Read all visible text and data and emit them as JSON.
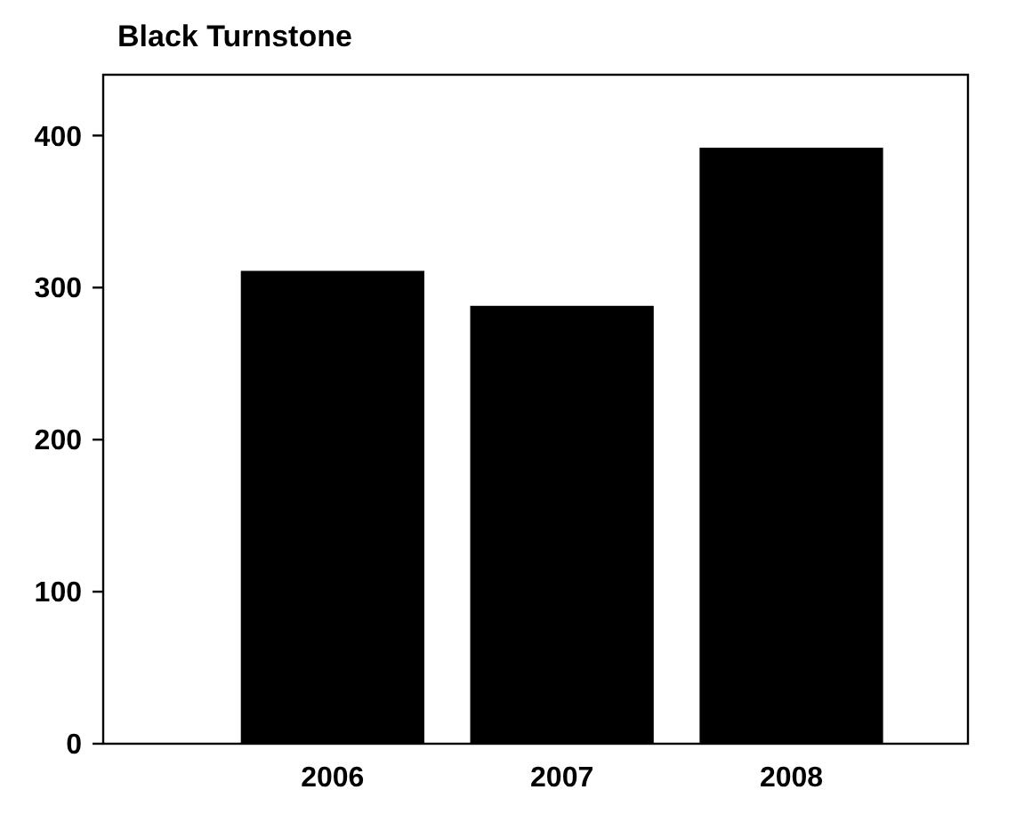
{
  "chart_data": {
    "type": "bar",
    "title": "Black Turnstone",
    "categories": [
      "2006",
      "2007",
      "2008"
    ],
    "values": [
      311,
      288,
      392
    ],
    "color": "#000000",
    "ylim": [
      0,
      440
    ],
    "yticks": [
      0,
      100,
      200,
      300,
      400
    ],
    "grid": false
  }
}
